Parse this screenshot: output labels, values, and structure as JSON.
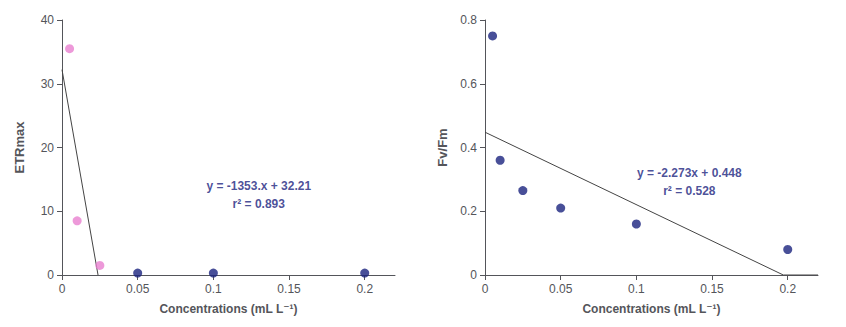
{
  "chart_data": [
    {
      "type": "scatter",
      "xlabel": "Concentrations (mL L⁻¹)",
      "ylabel": "ETRmax",
      "xlim": [
        0,
        0.22
      ],
      "xticks": [
        0,
        0.05,
        0.1,
        0.15,
        0.2
      ],
      "ylim": [
        0,
        40
      ],
      "yticks": [
        0,
        10,
        20,
        30,
        40
      ],
      "grid": false,
      "series": [
        {
          "type": "line",
          "color": "#444444",
          "x": [
            0,
            0.02380635624
          ],
          "values": [
            32.21,
            0
          ]
        },
        {
          "type": "scatter",
          "color": "#e87fd0",
          "x": [
            0.005,
            0.01,
            0.025
          ],
          "values": [
            35.5,
            8.5,
            1.5
          ]
        },
        {
          "type": "scatter",
          "color": "#1a237e",
          "x": [
            0.05,
            0.1,
            0.2
          ],
          "values": [
            0.3,
            0.3,
            0.3
          ]
        }
      ],
      "annotations": [
        {
          "text": "y = -1353.x + 32.21",
          "x": 0.13,
          "y": 14,
          "color": "#1a237e"
        },
        {
          "text": "r² = 0.893",
          "x": 0.13,
          "y": 11.2,
          "color": "#1a237e"
        }
      ]
    },
    {
      "type": "scatter",
      "xlabel": "Concentrations (mL L⁻¹)",
      "ylabel": "Fv/Fm",
      "xlim": [
        0,
        0.22
      ],
      "xticks": [
        0,
        0.05,
        0.1,
        0.15,
        0.2
      ],
      "ylim": [
        0,
        0.8
      ],
      "yticks": [
        0,
        0.2,
        0.4,
        0.6,
        0.8
      ],
      "grid": false,
      "series": [
        {
          "type": "line",
          "color": "#444444",
          "x": [
            0,
            0.19709635,
            0.22
          ],
          "values": [
            0.448,
            0,
            0
          ]
        },
        {
          "type": "scatter",
          "color": "#1a237e",
          "x": [
            0.005,
            0.01,
            0.025,
            0.05,
            0.1,
            0.2
          ],
          "values": [
            0.75,
            0.36,
            0.265,
            0.21,
            0.16,
            0.08
          ]
        }
      ],
      "annotations": [
        {
          "text": "y = -2.273x + 0.448",
          "x": 0.135,
          "y": 0.32,
          "color": "#1a237e"
        },
        {
          "text": "r² = 0.528",
          "x": 0.135,
          "y": 0.265,
          "color": "#1a237e"
        }
      ]
    }
  ]
}
